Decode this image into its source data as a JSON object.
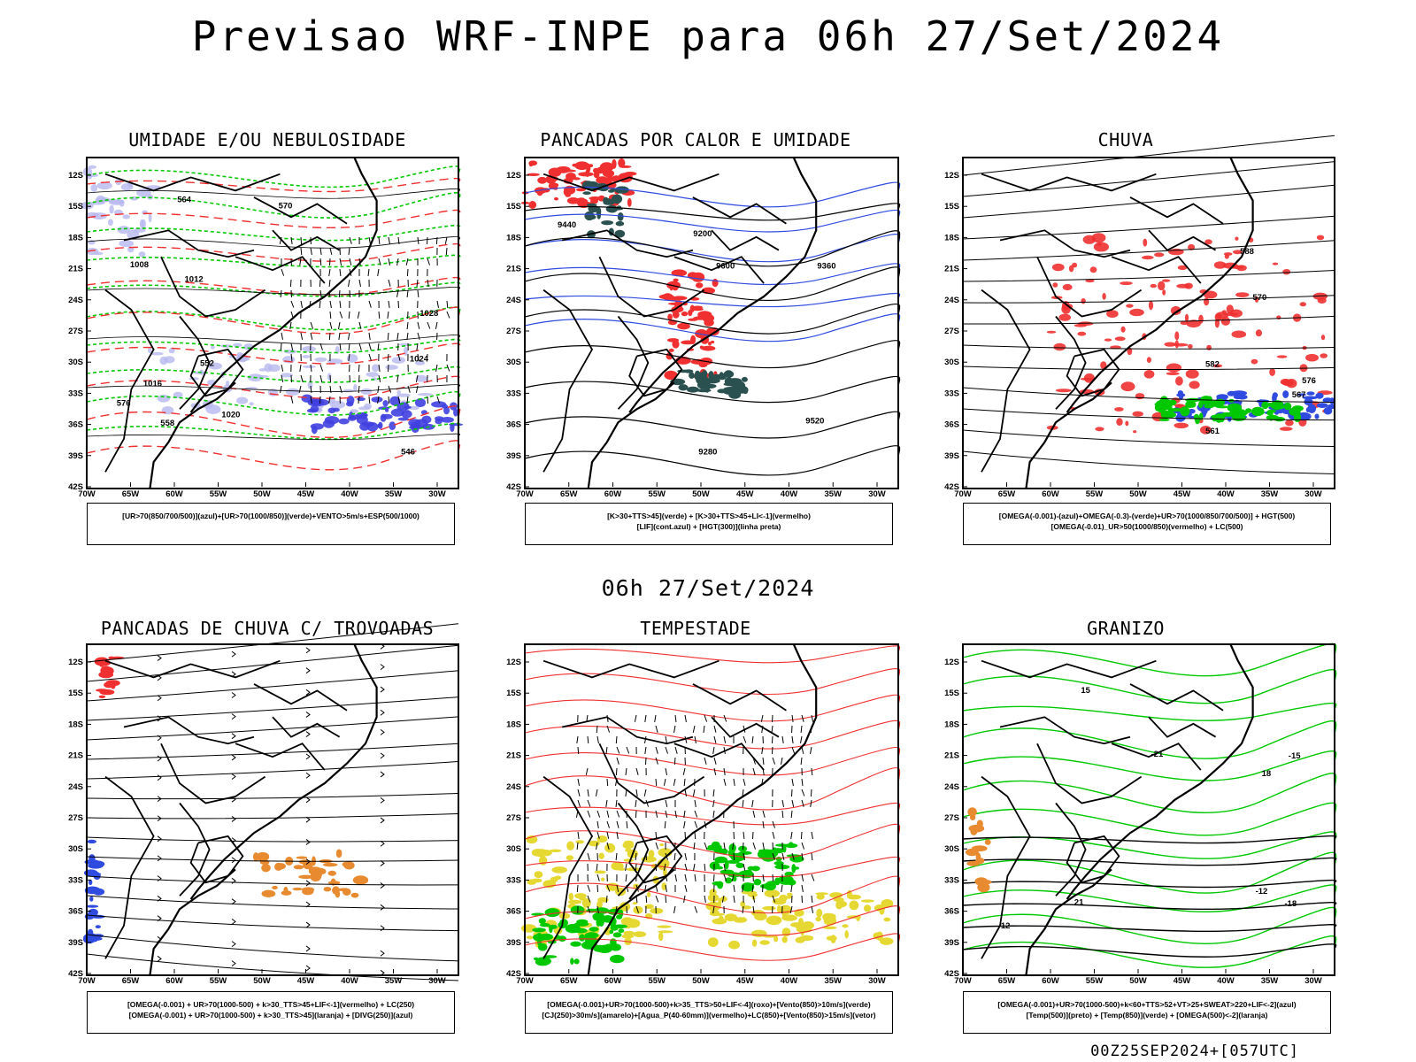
{
  "title": "Previsao WRF-INPE  para 06h 27/Set/2024",
  "subtitle": "06h 27/Set/2024",
  "footer": "00Z25SEP2024+[057UTC]",
  "chart_data": [
    {
      "type": "map",
      "title": "UMIDADE E/OU NEBULOSIDADE",
      "legend": [
        "[UR>70(850/700/500)](azul)+[UR>70(1000/850)](verde)+VENTO>5m/s+ESP(500/1000)"
      ],
      "contour_labels": [
        "1012",
        "1016",
        "1008",
        "1020",
        "1024",
        "1028",
        "546",
        "552",
        "558",
        "564",
        "570",
        "576"
      ],
      "lat_ticks": [
        "12S",
        "15S",
        "18S",
        "21S",
        "24S",
        "27S",
        "30S",
        "33S",
        "36S",
        "39S",
        "42S"
      ],
      "lon_ticks": [
        "70W",
        "65W",
        "60W",
        "55W",
        "50W",
        "45W",
        "40W",
        "35W",
        "30W"
      ]
    },
    {
      "type": "map",
      "title": "PANCADAS POR CALOR E UMIDADE",
      "legend": [
        "[K>30+TTS>45](verde) + [K>30+TTS>45+LI<-1](vermelho)",
        "[LIF](cont.azul) + [HGT(300)](linha preta)"
      ],
      "contour_labels": [
        "9600",
        "9520",
        "9440",
        "9360",
        "9280",
        "9200"
      ],
      "lat_ticks": [
        "12S",
        "15S",
        "18S",
        "21S",
        "24S",
        "27S",
        "30S",
        "33S",
        "36S",
        "39S",
        "42S"
      ],
      "lon_ticks": [
        "70W",
        "65W",
        "60W",
        "55W",
        "50W",
        "45W",
        "40W",
        "35W",
        "30W"
      ]
    },
    {
      "type": "map",
      "title": "CHUVA",
      "legend": [
        "[OMEGA(-0.001)-(azul)+OMEGA(-0.3)-(verde)+UR>70(1000/850/700/500)] + HGT(500)",
        "[OMEGA(-0.01)_UR>50(1000/850)(vermelho) + LC(500)"
      ],
      "contour_labels": [
        "582",
        "576",
        "570",
        "567",
        "561",
        "588"
      ],
      "lat_ticks": [
        "12S",
        "15S",
        "18S",
        "21S",
        "24S",
        "27S",
        "30S",
        "33S",
        "36S",
        "39S",
        "42S"
      ],
      "lon_ticks": [
        "70W",
        "65W",
        "60W",
        "55W",
        "50W",
        "45W",
        "40W",
        "35W",
        "30W"
      ]
    },
    {
      "type": "map",
      "title": "PANCADAS DE CHUVA C/ TROVOADAS",
      "legend": [
        "[OMEGA(-0.001) + UR>70(1000-500) + k>30_TTS>45+LIF<-1](vermelho) + LC(250)",
        "[OMEGA(-0.001) + UR>70(1000-500) + k>30_TTS>45](laranja) + [DIVG(250)](azul)"
      ],
      "contour_labels": [],
      "lat_ticks": [
        "12S",
        "15S",
        "18S",
        "21S",
        "24S",
        "27S",
        "30S",
        "33S",
        "36S",
        "39S",
        "42S"
      ],
      "lon_ticks": [
        "70W",
        "65W",
        "60W",
        "55W",
        "50W",
        "45W",
        "40W",
        "35W",
        "30W"
      ]
    },
    {
      "type": "map",
      "title": "TEMPESTADE",
      "legend": [
        "[OMEGA(-0.001)+UR>70(1000-500)+k>35_TTS>50+LIF<-4](roxo)+[Vento(850)>10m/s](verde)",
        "[CJ(250)>30m/s](amarelo)+[Agua_P(40-60mm)](vermelho)+LC(850)+[Vento(850)>15m/s](vetor)"
      ],
      "contour_labels": [],
      "lat_ticks": [
        "12S",
        "15S",
        "18S",
        "21S",
        "24S",
        "27S",
        "30S",
        "33S",
        "36S",
        "39S",
        "42S"
      ],
      "lon_ticks": [
        "70W",
        "65W",
        "60W",
        "55W",
        "50W",
        "45W",
        "40W",
        "35W",
        "30W"
      ]
    },
    {
      "type": "map",
      "title": "GRANIZO",
      "legend": [
        "[OMEGA(-0.001)+UR>70(1000-500)+k<60+TTS>52+VT>25+SWEAT>220+LIF<-2](azul)",
        "[Temp(500)](preto) + [Temp(850)](verde) + [OMEGA(500)<-2](laranja)"
      ],
      "contour_labels": [
        "-12",
        "-15",
        "-18",
        "-21",
        "12",
        "15",
        "18",
        "21"
      ],
      "lat_ticks": [
        "12S",
        "15S",
        "18S",
        "21S",
        "24S",
        "27S",
        "30S",
        "33S",
        "36S",
        "39S",
        "42S"
      ],
      "lon_ticks": [
        "70W",
        "65W",
        "60W",
        "55W",
        "50W",
        "45W",
        "40W",
        "35W",
        "30W"
      ]
    }
  ],
  "colors": {
    "blue": "#2f4be0",
    "lavender": "#b8b8f0",
    "purple": "#4040e0",
    "green": "#00c800",
    "red": "#f03030",
    "orange": "#e88a30",
    "yellow": "#e6d832",
    "darkgreen": "#2a5050"
  }
}
